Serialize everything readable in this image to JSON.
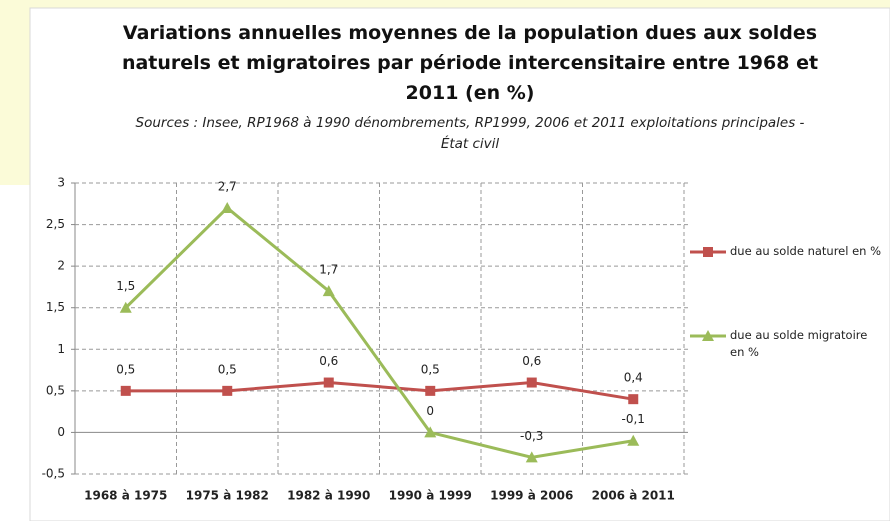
{
  "chart_data": {
    "type": "line",
    "title": "Variations annuelles moyennes  de la population dues aux soldes naturels et migratoires par période intercensitaire entre 1968 et 2011 (en %)",
    "subtitle": "Sources : Insee, RP1968 à 1990 dénombrements, RP1999, 2006 et 2011 exploitations principales - État civil",
    "categories": [
      "1968 à 1975",
      "1975 à 1982",
      "1982 à 1990",
      "1990 à 1999",
      "1999 à 2006",
      "2006 à 2011"
    ],
    "series": [
      {
        "name": "due au solde naturel en %",
        "color": "#c0504d",
        "marker": "square",
        "values": [
          0.5,
          0.5,
          0.6,
          0.5,
          0.6,
          0.4
        ],
        "value_labels": [
          "0,5",
          "0,5",
          "0,6",
          "0,5",
          "0,6",
          "0,4"
        ]
      },
      {
        "name": "due au solde migratoire en %",
        "color": "#9bbb59",
        "marker": "triangle",
        "values": [
          1.5,
          2.7,
          1.7,
          0,
          -0.3,
          -0.1
        ],
        "value_labels": [
          "1,5",
          "2,7",
          "1,7",
          "0",
          "-0,3",
          "-0,1"
        ]
      }
    ],
    "ylim": [
      -0.5,
      3
    ],
    "yticks": [
      {
        "value": -0.5,
        "label": "-0,5"
      },
      0,
      {
        "value": 0.5,
        "label": "0,5"
      },
      1,
      {
        "value": 1.5,
        "label": "1,5"
      },
      2,
      {
        "value": 2.5,
        "label": "2,5"
      },
      3
    ],
    "grid": true,
    "legend": "right"
  }
}
